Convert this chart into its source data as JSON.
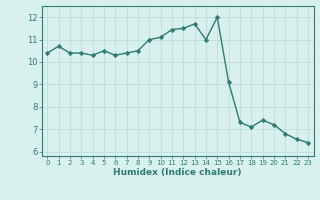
{
  "x": [
    0,
    1,
    2,
    3,
    4,
    5,
    6,
    7,
    8,
    9,
    10,
    11,
    12,
    13,
    14,
    15,
    16,
    17,
    18,
    19,
    20,
    21,
    22,
    23
  ],
  "y": [
    10.4,
    10.7,
    10.4,
    10.4,
    10.3,
    10.5,
    10.3,
    10.4,
    10.5,
    11.0,
    11.1,
    11.45,
    11.5,
    11.7,
    11.0,
    12.0,
    9.1,
    7.3,
    7.1,
    7.4,
    7.2,
    6.8,
    6.55,
    6.4
  ],
  "line_color": "#2e7d6e",
  "marker": "D",
  "marker_size": 2.2,
  "line_width": 1.0,
  "xlabel": "Humidex (Indice chaleur)",
  "xlim": [
    -0.5,
    23.5
  ],
  "ylim": [
    5.8,
    12.5
  ],
  "yticks": [
    6,
    7,
    8,
    9,
    10,
    11,
    12
  ],
  "xticks": [
    0,
    1,
    2,
    3,
    4,
    5,
    6,
    7,
    8,
    9,
    10,
    11,
    12,
    13,
    14,
    15,
    16,
    17,
    18,
    19,
    20,
    21,
    22,
    23
  ],
  "xtick_labels": [
    "0",
    "1",
    "2",
    "3",
    "4",
    "5",
    "6",
    "7",
    "8",
    "9",
    "10",
    "11",
    "12",
    "13",
    "14",
    "15",
    "16",
    "17",
    "18",
    "19",
    "20",
    "21",
    "22",
    "23"
  ],
  "bg_color": "#d8f0ee",
  "grid_color": "#c0dedd",
  "tick_color": "#2e7d6e",
  "label_color": "#2e7d6e"
}
